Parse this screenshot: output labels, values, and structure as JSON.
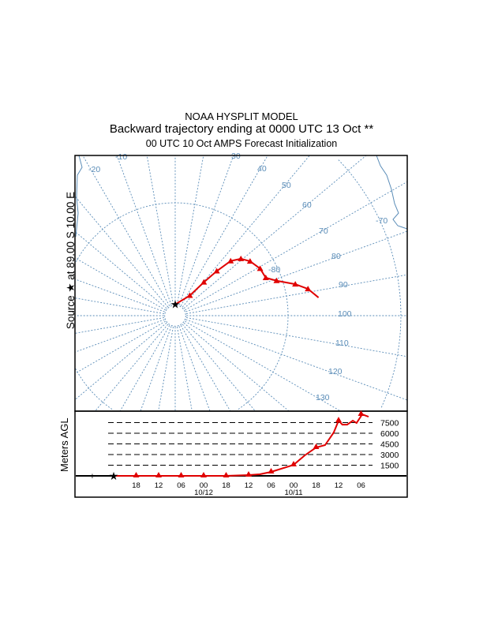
{
  "header": {
    "title": "NOAA HYSPLIT MODEL",
    "subtitle": "Backward trajectory ending at 0000 UTC 13 Oct **",
    "subtitle2": "00 UTC 10 Oct    AMPS  Forecast Initialization"
  },
  "side_label": "Source ★ at   89.00 S   10.00 E",
  "colors": {
    "grid": "#5b8db8",
    "trajectory": "#e00000",
    "frame": "#000000"
  },
  "chart_data": [
    {
      "type": "line",
      "title": "Backward trajectory map (south polar stereographic)",
      "meridian_labels": [
        {
          "lon": -20,
          "text": "-20"
        },
        {
          "lon": -10,
          "text": "-10"
        },
        {
          "lon": 30,
          "text": "30"
        },
        {
          "lon": 40,
          "text": "40"
        },
        {
          "lon": 50,
          "text": "50"
        },
        {
          "lon": 60,
          "text": "60"
        },
        {
          "lon": 70,
          "text": "70"
        },
        {
          "lon": 80,
          "text": "80"
        },
        {
          "lon": 90,
          "text": "90"
        },
        {
          "lon": 100,
          "text": "100"
        },
        {
          "lon": 110,
          "text": "110"
        },
        {
          "lon": 120,
          "text": "120"
        },
        {
          "lon": 130,
          "text": "130"
        }
      ],
      "parallel_labels": [
        {
          "lat": -80,
          "text": "-80"
        },
        {
          "lat": -70,
          "text": "-70"
        }
      ],
      "parallels": [
        -89,
        -80,
        -70
      ],
      "source": {
        "lat": -89.0,
        "lon": 10.0
      },
      "trajectory": {
        "lon": [
          10,
          46,
          50.6,
          53,
          55.4,
          59.1,
          64,
          71,
          77.3,
          81,
          85.3,
          88.6,
          92.8
        ],
        "lat": [
          -89,
          -87.8,
          -86.1,
          -84.6,
          -83.1,
          -82.3,
          -81.8,
          -81.4,
          -81.3,
          -80.5,
          -79,
          -78,
          -77.2
        ]
      }
    },
    {
      "type": "line",
      "ylabel": "Meters AGL",
      "y_ticks": [
        "1500",
        "3000",
        "4500",
        "6000",
        "7500"
      ],
      "y_tick_values": [
        1500,
        3000,
        4500,
        6000,
        7500
      ],
      "x_tick_labels": [
        "18",
        "12",
        "06",
        "00",
        "18",
        "12",
        "06",
        "00",
        "18",
        "12",
        "06"
      ],
      "date_labels": [
        {
          "after_tick": 3,
          "text": "10/12"
        },
        {
          "after_tick": 7,
          "text": "10/11"
        }
      ],
      "hours_back": [
        0,
        6,
        12,
        18,
        24,
        30,
        36,
        39,
        42,
        48,
        51,
        54,
        56.4,
        58.7,
        60,
        61,
        62.3,
        63.8,
        64.8,
        66.3,
        68
      ],
      "height_m": [
        0,
        0,
        0,
        0,
        0,
        0,
        111,
        222,
        555,
        1550,
        2890,
        4000,
        4330,
        6100,
        7770,
        7210,
        7210,
        7770,
        7440,
        8660,
        8330
      ],
      "marker_hours": [
        6,
        12,
        18,
        24,
        30,
        36,
        42,
        48,
        54,
        60,
        66
      ]
    }
  ]
}
